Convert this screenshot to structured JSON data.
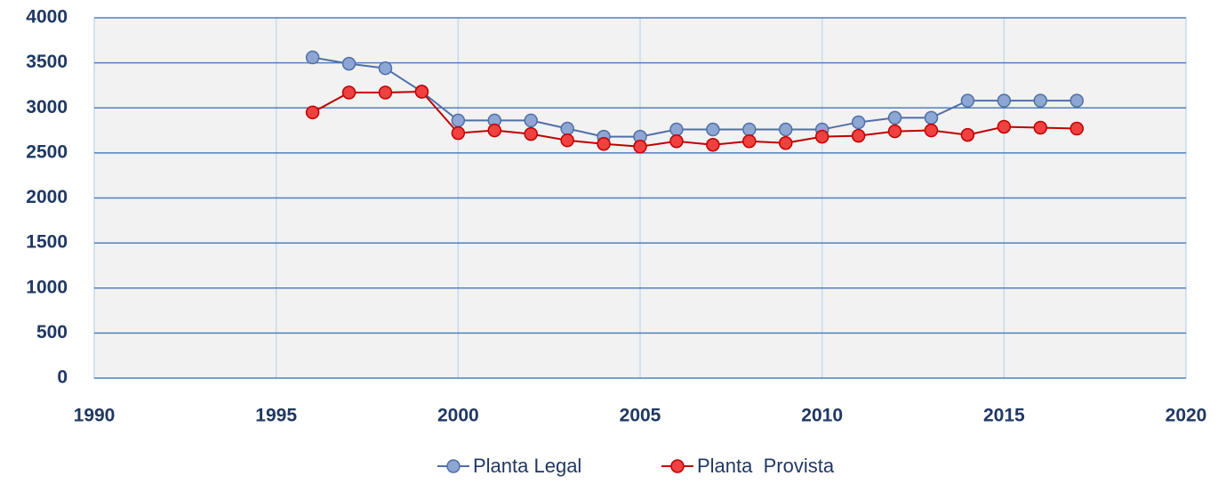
{
  "chart_data": {
    "type": "line",
    "x": [
      1996,
      1997,
      1998,
      1999,
      2000,
      2001,
      2002,
      2003,
      2004,
      2005,
      2006,
      2007,
      2008,
      2009,
      2010,
      2011,
      2012,
      2013,
      2014,
      2015,
      2016,
      2017
    ],
    "series": [
      {
        "name": "Planta Legal",
        "color": "#4f6fa8",
        "marker_fill": "#8ea6d4",
        "values": [
          3560,
          3490,
          3440,
          3180,
          2860,
          2860,
          2860,
          2770,
          2680,
          2680,
          2760,
          2760,
          2760,
          2760,
          2760,
          2840,
          2890,
          2890,
          3080,
          3080,
          3080,
          3080
        ]
      },
      {
        "name": "Planta  Provista",
        "color": "#c00000",
        "marker_fill": "#f04040",
        "values": [
          2950,
          3170,
          3170,
          3180,
          2720,
          2750,
          2710,
          2640,
          2600,
          2570,
          2630,
          2590,
          2630,
          2610,
          2680,
          2690,
          2740,
          2750,
          2700,
          2790,
          2780,
          2770
        ]
      }
    ],
    "xlim": [
      1990,
      2020
    ],
    "xticks": [
      1990,
      1995,
      2000,
      2005,
      2010,
      2015,
      2020
    ],
    "ylim": [
      0,
      4000
    ],
    "yticks": [
      0,
      500,
      1000,
      1500,
      2000,
      2500,
      3000,
      3500,
      4000
    ],
    "grid": true,
    "legend": "bottom"
  }
}
